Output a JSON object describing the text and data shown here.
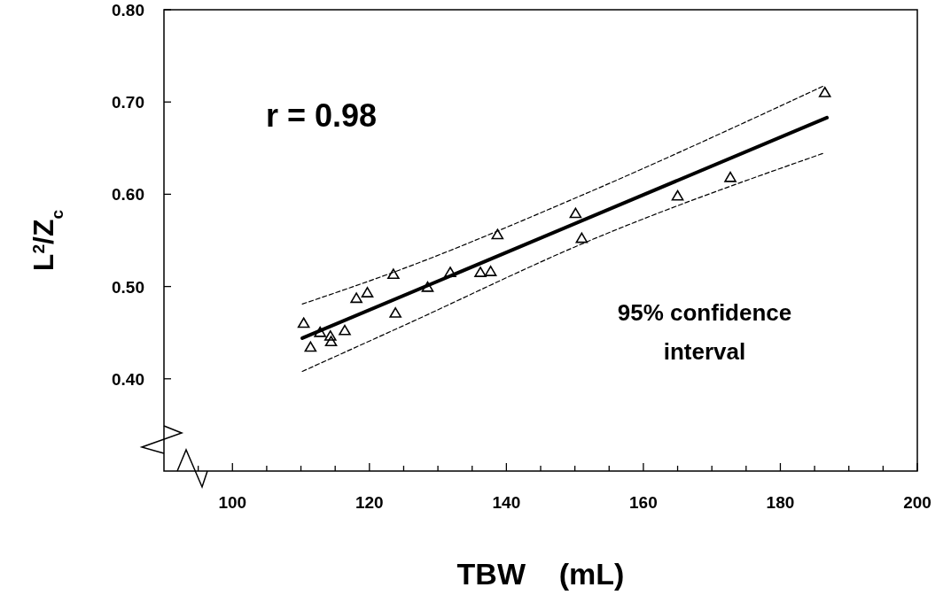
{
  "chart_data": {
    "type": "scatter",
    "xlabel": "TBW    (mL)",
    "ylabel": "L$^{2}$/Z$_{c}$",
    "annotations": [
      "r = 0.98",
      "95% confidence interval"
    ],
    "xlim": [
      90,
      200
    ],
    "ylim": [
      0.3,
      0.8
    ],
    "xticks": [
      {
        "value": 95,
        "label": null
      },
      100,
      {
        "value": 105,
        "label": null
      },
      {
        "value": 110,
        "label": null
      },
      {
        "value": 115,
        "label": null
      },
      120,
      {
        "value": 125,
        "label": null
      },
      {
        "value": 130,
        "label": null
      },
      {
        "value": 135,
        "label": null
      },
      140,
      {
        "value": 145,
        "label": null
      },
      {
        "value": 150,
        "label": null
      },
      {
        "value": 155,
        "label": null
      },
      160,
      {
        "value": 165,
        "label": null
      },
      {
        "value": 170,
        "label": null
      },
      {
        "value": 175,
        "label": null
      },
      180,
      {
        "value": 185,
        "label": null
      },
      {
        "value": 190,
        "label": null
      },
      {
        "value": 195,
        "label": null
      },
      200
    ],
    "yticks": [
      {
        "value": 0.4,
        "label": "0.40"
      },
      {
        "value": 0.5,
        "label": "0.50"
      },
      {
        "value": 0.6,
        "label": "0.60"
      },
      {
        "value": 0.7,
        "label": "0.70"
      },
      {
        "value": 0.8,
        "label": "0.80"
      }
    ],
    "series": [
      {
        "type": "scatter",
        "marker": "triangle",
        "color": "#000000",
        "x": [
          110.4,
          111.4,
          112.8,
          114.3,
          114.4,
          116.4,
          118.1,
          119.7,
          123.5,
          123.8,
          128.5,
          131.8,
          136.2,
          137.7,
          138.7,
          150.1,
          151.0,
          165.0,
          172.7,
          186.5
        ],
        "values": [
          0.46,
          0.434,
          0.45,
          0.446,
          0.44,
          0.452,
          0.487,
          0.493,
          0.513,
          0.471,
          0.499,
          0.515,
          0.515,
          0.516,
          0.556,
          0.579,
          0.552,
          0.598,
          0.618,
          0.71
        ]
      },
      {
        "type": "line",
        "line_style": "solid",
        "color": "#000000",
        "x": [
          110.2,
          186.8
        ],
        "values": [
          0.444,
          0.683
        ]
      },
      {
        "type": "line",
        "line_style": "dashed",
        "color": "#000000",
        "x": [
          110.2,
          124.8,
          150.1,
          186.5
        ],
        "values": [
          0.481,
          0.519,
          0.596,
          0.718
        ]
      },
      {
        "type": "line",
        "line_style": "dashed",
        "color": "#000000",
        "x": [
          110.2,
          124.8,
          151.6,
          186.5
        ],
        "values": [
          0.408,
          0.457,
          0.548,
          0.645
        ]
      }
    ]
  }
}
